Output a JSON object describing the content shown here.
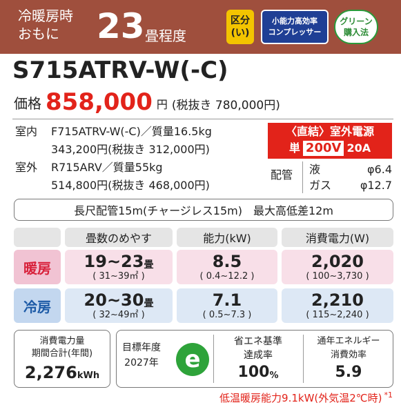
{
  "header": {
    "line1": "冷暖房時",
    "line2": "おもに",
    "tatami": "23",
    "tatami_unit": "畳程度",
    "badges": [
      {
        "line1": "区分",
        "line2": "(い)"
      },
      {
        "line1": "小能力高効率",
        "line2": "コンプレッサー"
      },
      {
        "line1": "グリーン",
        "line2": "購入法"
      }
    ]
  },
  "model": "S715ATRV-W(-C)",
  "price": {
    "label": "価格",
    "value": "858,000",
    "unit": "円",
    "tax_excluded": "(税抜き 780,000円)"
  },
  "indoor": {
    "label": "室内",
    "model": "F715ATRV-W(-C)／質量16.5kg",
    "price": "343,200円(税抜き 312,000円)"
  },
  "outdoor": {
    "label": "室外",
    "model": "R715ARV／質量55kg",
    "price": "514,800円(税抜き 468,000円)"
  },
  "power": {
    "title": "〈直結〉室外電源",
    "phase": "単",
    "voltage": "200V",
    "ampere": "20A"
  },
  "piping": {
    "label": "配管",
    "liquid": "液",
    "liquid_size": "φ6.4",
    "gas": "ガス",
    "gas_size": "φ12.7"
  },
  "pipe_length": "長尺配管15m(チャージレス15m)　最大高低差12m",
  "table": {
    "headers": [
      "畳数のめやす",
      "能力(kW)",
      "消費電力(W)"
    ],
    "rows": [
      {
        "label": "暖房",
        "tatami": "19~23",
        "tatami_unit": "畳",
        "area": "( 31~39㎡ )",
        "capacity": "8.5",
        "capacity_range": "( 0.4~12.2 )",
        "power": "2,020",
        "power_range": "( 100~3,730 )"
      },
      {
        "label": "冷房",
        "tatami": "20~30",
        "tatami_unit": "畳",
        "area": "( 32~49㎡ )",
        "capacity": "7.1",
        "capacity_range": "( 0.5~7.3 )",
        "power": "2,210",
        "power_range": "( 115~2,240 )"
      }
    ]
  },
  "energy": {
    "consumption_line1": "消費電力量",
    "consumption_line2": "期間合計(年間)",
    "consumption_value": "2,276",
    "consumption_unit": "kWh",
    "target_line1": "目標年度",
    "target_line2": "2027年",
    "logo": "e",
    "achievement_line1": "省エネ基準",
    "achievement_line2": "達成率",
    "achievement_value": "100",
    "achievement_unit": "%",
    "apf_line1": "通年エネルギー",
    "apf_line2": "消費効率",
    "apf_value": "5.9"
  },
  "footnote": {
    "text": "低温暖房能力9.1kW(外気温2℃時)",
    "mark": "*1"
  }
}
